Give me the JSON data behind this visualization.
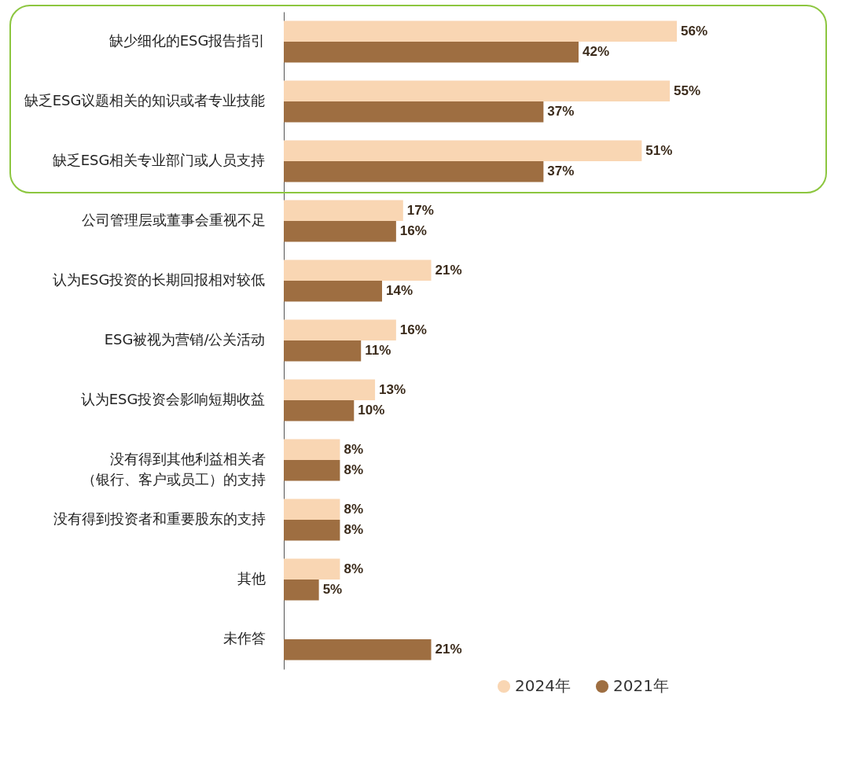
{
  "chart_data": {
    "type": "bar",
    "orientation": "horizontal",
    "legend": "bottom right",
    "categories": [
      "缺少细化的ESG报告指引",
      "缺乏ESG议题相关的知识或者专业技能",
      "缺乏ESG相关专业部门或人员支持",
      "公司管理层或董事会重视不足",
      "认为ESG投资的长期回报相对较低",
      "ESG被视为营销/公关活动",
      "认为ESG投资会影响短期收益",
      "没有得到其他利益相关者（银行、客户或员工）的支持",
      "没有得到投资者和重要股东的支持",
      "其他",
      "未作答"
    ],
    "series": [
      {
        "name": "2024年",
        "color": "#f9d6b3",
        "values": [
          56,
          55,
          51,
          17,
          21,
          16,
          13,
          8,
          8,
          8,
          null
        ],
        "value_labels": [
          "56%",
          "55%",
          "51%",
          "17%",
          "21%",
          "16%",
          "13%",
          "8%",
          "8%",
          "8%",
          null
        ]
      },
      {
        "name": "2021年",
        "color": "#9e6e41",
        "values": [
          42,
          37,
          37,
          16,
          14,
          11,
          10,
          8,
          8,
          5,
          21
        ],
        "value_labels": [
          "42%",
          "37%",
          "37%",
          "16%",
          "14%",
          "11%",
          "10%",
          "8%",
          "8%",
          "5%",
          "21%"
        ]
      }
    ]
  }
}
